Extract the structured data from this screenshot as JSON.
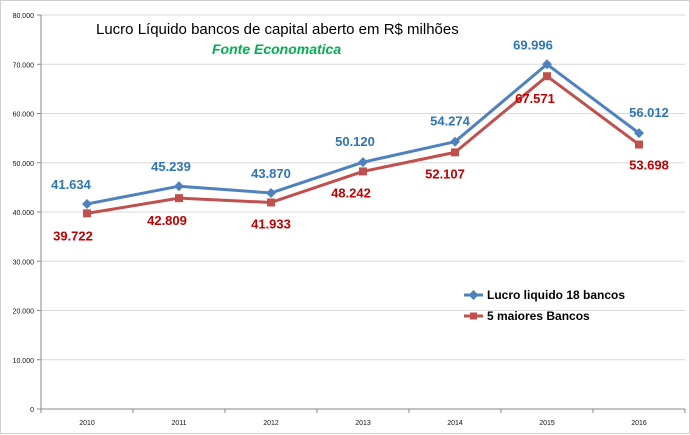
{
  "chart_data": {
    "type": "line",
    "title": "Lucro Líquido bancos de capital aberto em R$ milhões",
    "subtitle": "Fonte Economatica",
    "categories": [
      "2010",
      "2011",
      "2012",
      "2013",
      "2014",
      "2015",
      "2016"
    ],
    "y_ticks": [
      "0",
      "10.000",
      "20.000",
      "30.000",
      "40.000",
      "50.000",
      "60.000",
      "70.000",
      "80.000"
    ],
    "ylim": [
      0,
      80000
    ],
    "grid": true,
    "legend_position": "right-middle",
    "series": [
      {
        "name": "Lucro liquido 18 bancos",
        "color": "#4f81bd",
        "label_color": "#2e75b6",
        "marker": "diamond",
        "values": [
          41634,
          45239,
          43870,
          50120,
          54274,
          69996,
          56012
        ],
        "labels": [
          "41.634",
          "45.239",
          "43.870",
          "50.120",
          "54.274",
          "69.996",
          "56.012"
        ]
      },
      {
        "name": "5 maiores Bancos",
        "color": "#c0504d",
        "label_color": "#c00000",
        "marker": "square",
        "values": [
          39722,
          42809,
          41933,
          48242,
          52107,
          67571,
          53698
        ],
        "labels": [
          "39.722",
          "42.809",
          "41.933",
          "48.242",
          "52.107",
          "67.571",
          "53.698"
        ]
      }
    ],
    "colors": {
      "subtitle": "#00b050",
      "grid": "#d9d9d9",
      "axis": "#888888"
    }
  }
}
